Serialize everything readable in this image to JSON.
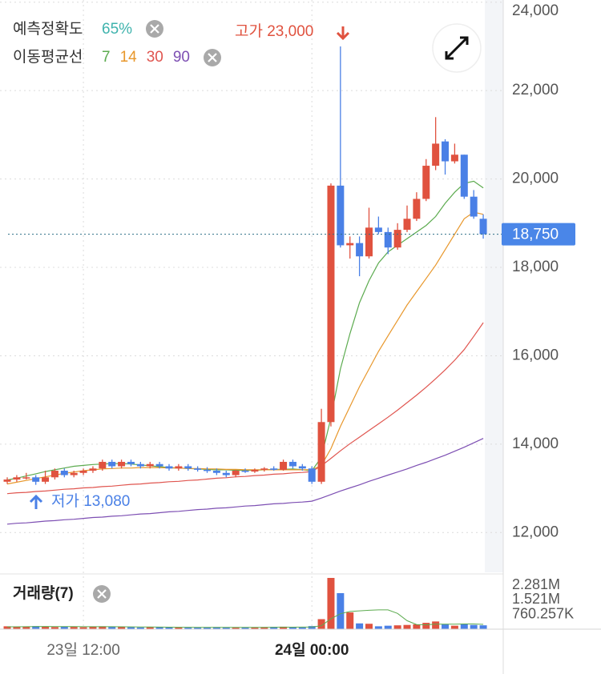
{
  "header": {
    "accuracy_label": "예측정확도",
    "accuracy_value": "65%",
    "ma_legend_title": "이동평균선"
  },
  "chart_data": [
    {
      "type": "candlestick",
      "x": [
        0,
        1,
        2,
        3,
        4,
        5,
        6,
        7,
        8,
        9,
        10,
        11,
        12,
        13,
        14,
        15,
        16,
        17,
        18,
        19,
        20,
        21,
        22,
        23,
        24,
        25,
        26,
        27,
        28,
        29,
        30,
        31,
        32,
        33,
        34,
        35,
        36,
        37,
        38,
        39,
        40,
        41,
        42,
        43,
        44,
        45,
        46,
        47,
        48,
        49,
        50
      ],
      "open": [
        13150,
        13200,
        13250,
        13250,
        13150,
        13250,
        13400,
        13300,
        13350,
        13400,
        13450,
        13600,
        13500,
        13600,
        13550,
        13500,
        13550,
        13500,
        13450,
        13500,
        13450,
        13420,
        13400,
        13350,
        13300,
        13400,
        13380,
        13420,
        13450,
        13420,
        13600,
        13500,
        13450,
        13150,
        14500,
        19850,
        18500,
        18550,
        18250,
        18900,
        18800,
        18450,
        18850,
        19100,
        19550,
        20300,
        20850,
        20400,
        20550,
        19600,
        19100
      ],
      "high": [
        13250,
        13300,
        13350,
        13300,
        13400,
        13450,
        13450,
        13400,
        13450,
        13500,
        13650,
        13650,
        13650,
        13650,
        13600,
        13600,
        13600,
        13550,
        13550,
        13550,
        13500,
        13480,
        13450,
        13400,
        13420,
        13450,
        13450,
        13480,
        13500,
        13650,
        13650,
        13550,
        13500,
        14800,
        19900,
        23000,
        18700,
        18700,
        19350,
        19150,
        18900,
        19000,
        19400,
        19700,
        20450,
        21400,
        20900,
        20800,
        20550,
        19750,
        19200
      ],
      "low": [
        13100,
        13150,
        13200,
        13080,
        13100,
        13200,
        13250,
        13250,
        13300,
        13350,
        13400,
        13450,
        13450,
        13500,
        13450,
        13450,
        13450,
        13400,
        13400,
        13400,
        13380,
        13350,
        13300,
        13250,
        13250,
        13350,
        13350,
        13380,
        13400,
        13400,
        13450,
        13400,
        13100,
        13100,
        14400,
        18450,
        18200,
        17800,
        18200,
        18750,
        18300,
        18400,
        18800,
        19050,
        19500,
        20200,
        20100,
        20350,
        19550,
        19100,
        18650
      ],
      "close": [
        13200,
        13250,
        13250,
        13150,
        13250,
        13400,
        13300,
        13350,
        13400,
        13450,
        13600,
        13500,
        13600,
        13550,
        13500,
        13550,
        13500,
        13450,
        13500,
        13450,
        13420,
        13400,
        13350,
        13300,
        13400,
        13380,
        13420,
        13450,
        13420,
        13600,
        13500,
        13450,
        13150,
        14500,
        19850,
        18500,
        18550,
        18250,
        18900,
        18800,
        18450,
        18850,
        19100,
        19550,
        20300,
        20800,
        20400,
        20550,
        19600,
        19150,
        18750
      ],
      "up_color": "#e0523f",
      "down_color": "#4a80e6",
      "series": [
        {
          "name": "7",
          "color": "#5cab4f",
          "values": [
            13190,
            13230,
            13280,
            13330,
            13380,
            13420,
            13460,
            13500,
            13520,
            13540,
            13550,
            13560,
            13560,
            13550,
            13530,
            13510,
            13490,
            13470,
            13460,
            13450,
            13440,
            13430,
            13420,
            13420,
            13410,
            13410,
            13410,
            13420,
            13430,
            13430,
            13440,
            13420,
            13400,
            13700,
            14600,
            15700,
            16500,
            17200,
            17700,
            18100,
            18350,
            18500,
            18650,
            18800,
            18950,
            19150,
            19450,
            19700,
            19900,
            19950,
            19800
          ]
        },
        {
          "name": "14",
          "color": "#e8972b",
          "values": [
            13100,
            13140,
            13180,
            13220,
            13260,
            13300,
            13340,
            13370,
            13400,
            13420,
            13440,
            13450,
            13460,
            13460,
            13470,
            13470,
            13470,
            13460,
            13460,
            13450,
            13450,
            13440,
            13440,
            13430,
            13430,
            13420,
            13420,
            13420,
            13420,
            13420,
            13420,
            13420,
            13420,
            13520,
            13900,
            14400,
            14850,
            15300,
            15700,
            16100,
            16450,
            16800,
            17150,
            17450,
            17750,
            18050,
            18400,
            18750,
            19100,
            19250,
            19200
          ]
        },
        {
          "name": "30",
          "color": "#e0554f",
          "values": [
            12880,
            12900,
            12910,
            12930,
            12940,
            12960,
            12980,
            12990,
            13010,
            13020,
            13040,
            13050,
            13070,
            13090,
            13100,
            13120,
            13130,
            13150,
            13160,
            13180,
            13190,
            13210,
            13230,
            13240,
            13260,
            13270,
            13290,
            13300,
            13320,
            13330,
            13350,
            13360,
            13380,
            13510,
            13680,
            13850,
            14010,
            14160,
            14310,
            14460,
            14610,
            14770,
            14940,
            15110,
            15290,
            15480,
            15680,
            15900,
            16140,
            16440,
            16750
          ]
        },
        {
          "name": "90",
          "color": "#7d4fb3",
          "values": [
            12190,
            12210,
            12220,
            12240,
            12260,
            12270,
            12290,
            12300,
            12320,
            12340,
            12350,
            12370,
            12380,
            12400,
            12420,
            12430,
            12450,
            12470,
            12480,
            12500,
            12520,
            12530,
            12550,
            12560,
            12580,
            12600,
            12610,
            12630,
            12650,
            12660,
            12680,
            12690,
            12710,
            12780,
            12860,
            12940,
            13010,
            13080,
            13160,
            13230,
            13300,
            13370,
            13440,
            13520,
            13590,
            13670,
            13750,
            13840,
            13930,
            14030,
            14130
          ]
        }
      ],
      "xlim": [
        -0.76,
        52.1
      ],
      "xticks": [
        {
          "value": 8,
          "label": "23일 12:00"
        },
        {
          "value": 32,
          "label": "24일 00:00"
        }
      ],
      "ylim": [
        11100,
        24050
      ],
      "yticks": [
        {
          "value": 12000,
          "label": "12,000"
        },
        {
          "value": 14000,
          "label": "14,000"
        },
        {
          "value": 16000,
          "label": "16,000"
        },
        {
          "value": 18000,
          "label": "18,000"
        },
        {
          "value": 20000,
          "label": "20,000"
        },
        {
          "value": 22000,
          "label": "22,000"
        },
        {
          "value": 24000,
          "label": "24,000"
        }
      ],
      "current_price": {
        "value": 18750,
        "label": "18,750"
      },
      "high_label": "고가 23,000",
      "low_label": "저가 13,080",
      "grid": true
    },
    {
      "type": "bar",
      "title": "거래량(7)",
      "values": [
        150000,
        120000,
        140000,
        160000,
        130000,
        110000,
        140000,
        120000,
        100000,
        130000,
        150000,
        120000,
        110000,
        100000,
        90000,
        100000,
        110000,
        90000,
        100000,
        80000,
        90000,
        100000,
        110000,
        90000,
        80000,
        90000,
        100000,
        110000,
        120000,
        130000,
        100000,
        90000,
        160000,
        520000,
        2660000,
        1870000,
        870000,
        300000,
        280000,
        150000,
        180000,
        200000,
        220000,
        250000,
        330000,
        400000,
        250000,
        180000,
        260000,
        220000,
        200000
      ],
      "series": [
        {
          "name": "7",
          "color": "#5cab4f",
          "values": [
            125000,
            125000,
            130000,
            135000,
            140000,
            135000,
            135000,
            135000,
            130000,
            130000,
            130000,
            130000,
            125000,
            120000,
            115000,
            115000,
            110000,
            105000,
            100000,
            100000,
            95000,
            95000,
            95000,
            95000,
            95000,
            95000,
            95000,
            95000,
            100000,
            105000,
            105000,
            110000,
            115000,
            180000,
            540000,
            800000,
            920000,
            950000,
            980000,
            1000000,
            1000000,
            820000,
            440000,
            240000,
            230000,
            260000,
            260000,
            260000,
            270000,
            270000,
            250000
          ]
        }
      ],
      "ylim": [
        0,
        2825000
      ],
      "yticks": [
        {
          "value": 760257,
          "label": "760.257K"
        },
        {
          "value": 1521000,
          "label": "1.521M"
        },
        {
          "value": 2281000,
          "label": "2.281M"
        }
      ]
    }
  ]
}
